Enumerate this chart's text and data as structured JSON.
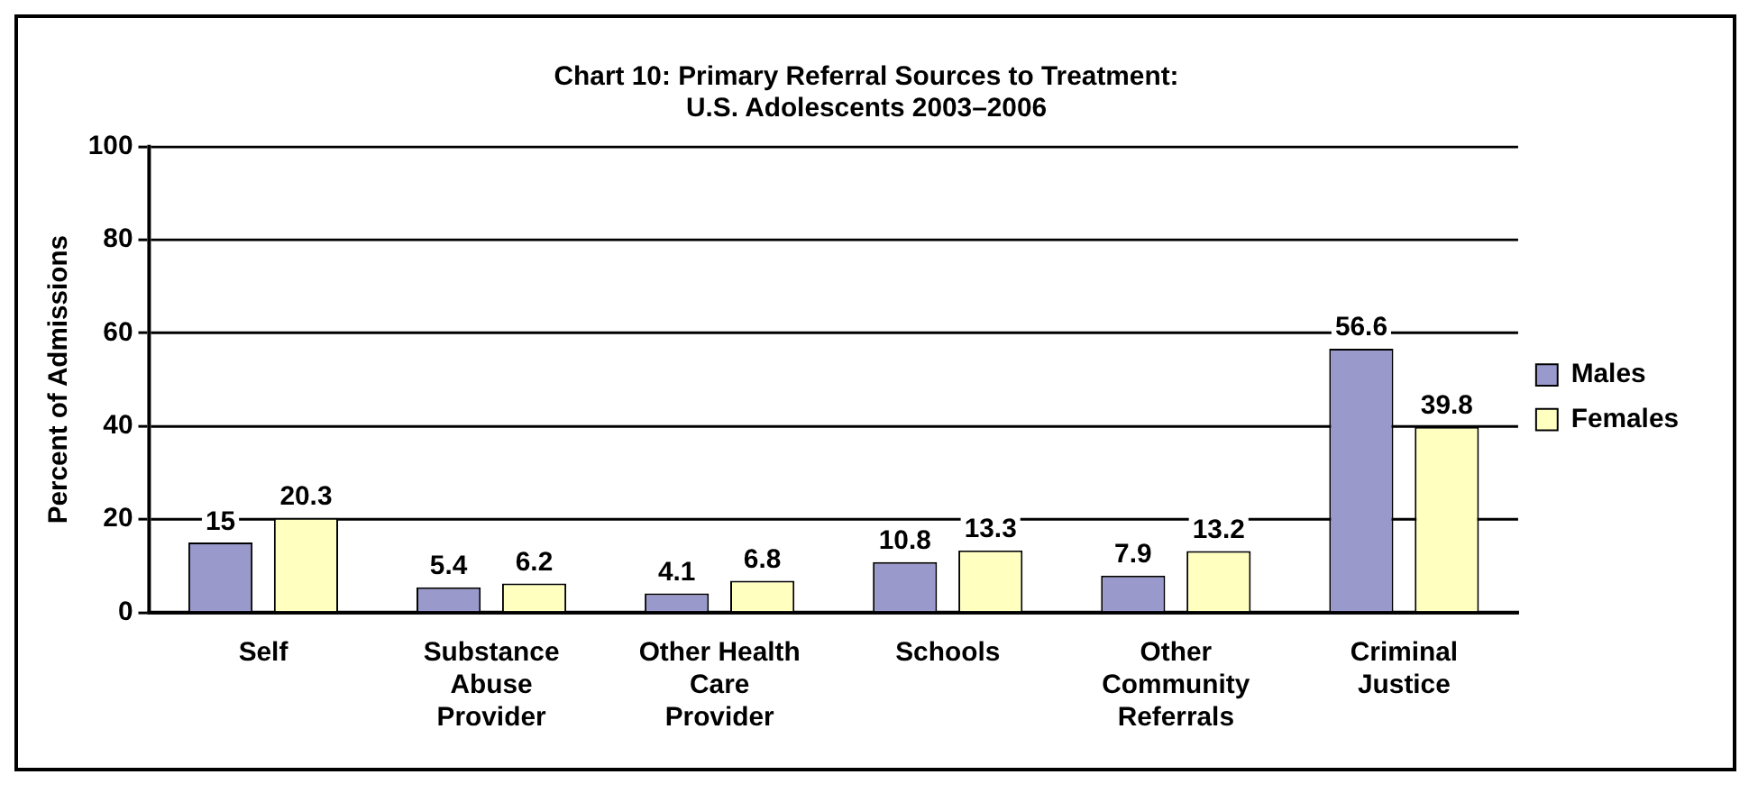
{
  "chart_data": {
    "type": "bar",
    "title": "Chart 10: Primary Referral Sources to Treatment:\nU.S. Adolescents 2003–2006",
    "ylabel": "Percent of Admissions",
    "categories": [
      "Self",
      "Substance Abuse Provider",
      "Other Health Care Provider",
      "Schools",
      "Other Community Referrals",
      "Criminal Justice"
    ],
    "series": [
      {
        "name": "Males",
        "color": "#9999cc",
        "values": [
          15,
          5.4,
          4.1,
          10.8,
          7.9,
          56.6
        ]
      },
      {
        "name": "Females",
        "color": "#ffffc0",
        "values": [
          20.3,
          6.2,
          6.8,
          13.3,
          13.2,
          39.8
        ]
      }
    ],
    "ylim": [
      0,
      100
    ],
    "yticks": [
      0,
      20,
      40,
      60,
      80,
      100
    ],
    "grid": "y",
    "legend": "right",
    "data_labels": true
  }
}
